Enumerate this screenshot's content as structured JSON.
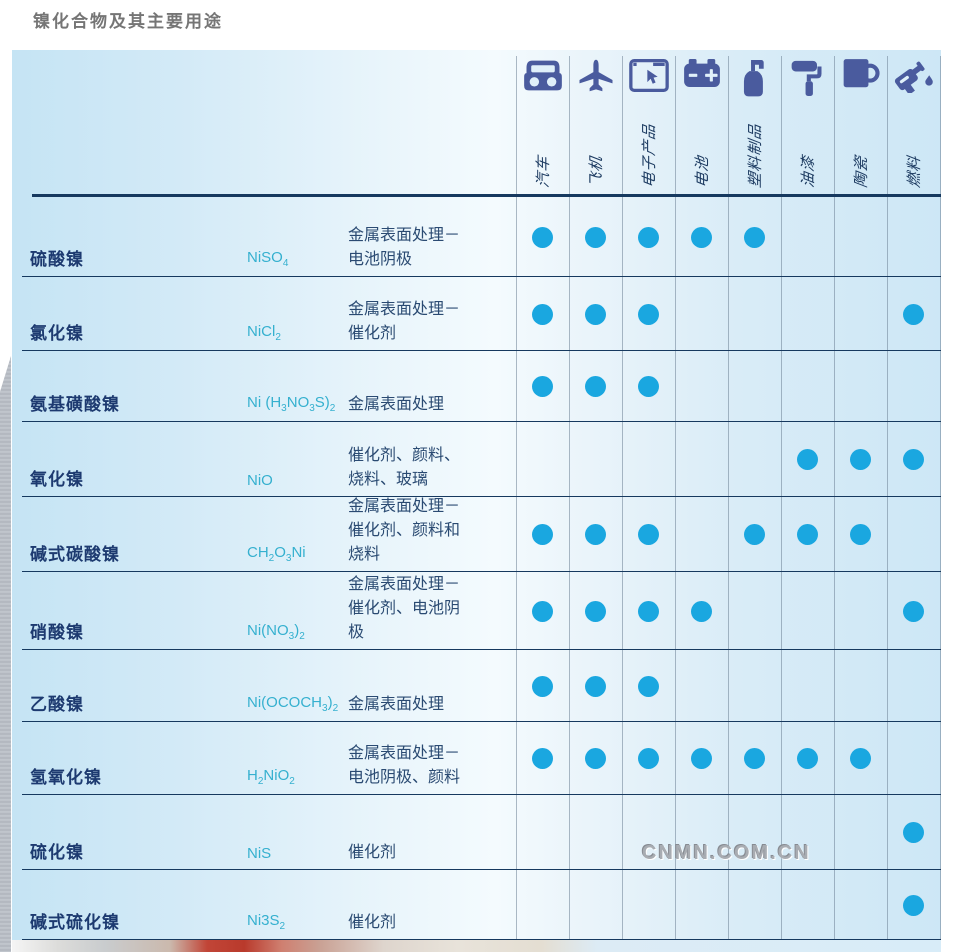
{
  "page_title": "镍化合物及其主要用途",
  "watermark": "CNMN.COM.CN",
  "colors": {
    "icon_blue": "#4a5b9e",
    "dot_blue": "#1aa7e0",
    "rule_dark": "#16395f",
    "grid_gray": "#90a0ae",
    "name_navy": "#1d3a70",
    "formula_cyan": "#35b0cf",
    "title_gray": "#757575"
  },
  "table": {
    "columns": [
      {
        "label": "汽车",
        "icon": "car-icon"
      },
      {
        "label": "飞机",
        "icon": "plane-icon"
      },
      {
        "label": "电子产品",
        "icon": "electronics-icon"
      },
      {
        "label": "电池",
        "icon": "battery-icon"
      },
      {
        "label": "塑料制品",
        "icon": "plastic-bottle-icon"
      },
      {
        "label": "油漆",
        "icon": "paint-roller-icon"
      },
      {
        "label": "陶瓷",
        "icon": "mug-icon"
      },
      {
        "label": "燃料",
        "icon": "fuel-nozzle-icon"
      }
    ],
    "rows": [
      {
        "name": "硫酸镍",
        "formula": "NiSO_4",
        "use": "金属表面处理－电池阴极",
        "dots": [
          1,
          1,
          1,
          1,
          1,
          0,
          0,
          0
        ]
      },
      {
        "name": "氯化镍",
        "formula": "NiCl_2",
        "use": "金属表面处理－催化剂",
        "dots": [
          1,
          1,
          1,
          0,
          0,
          0,
          0,
          1
        ]
      },
      {
        "name": "氨基磺酸镍",
        "formula": "Ni (H_3NO_3S)_2",
        "use": "金属表面处理",
        "dots": [
          1,
          1,
          1,
          0,
          0,
          0,
          0,
          0
        ]
      },
      {
        "name": "氧化镍",
        "formula": "NiO",
        "use": "催化剂、颜料、烧料、玻璃",
        "dots": [
          0,
          0,
          0,
          0,
          0,
          1,
          1,
          1
        ]
      },
      {
        "name": "碱式碳酸镍",
        "formula": "CH_2O_3Ni",
        "use": "金属表面处理－催化剂、颜料和烧料",
        "dots": [
          1,
          1,
          1,
          0,
          1,
          1,
          1,
          0
        ]
      },
      {
        "name": "硝酸镍",
        "formula": "Ni(NO_3)_2",
        "use": "金属表面处理－催化剂、电池阴极",
        "dots": [
          1,
          1,
          1,
          1,
          0,
          0,
          0,
          1
        ]
      },
      {
        "name": "乙酸镍",
        "formula": "Ni(OCOCH_3)_2",
        "use": "金属表面处理",
        "dots": [
          1,
          1,
          1,
          0,
          0,
          0,
          0,
          0
        ]
      },
      {
        "name": "氢氧化镍",
        "formula": "H_2NiO_2",
        "use": "金属表面处理－电池阴极、颜料",
        "dots": [
          1,
          1,
          1,
          1,
          1,
          1,
          1,
          0
        ]
      },
      {
        "name": "硫化镍",
        "formula": "NiS",
        "use": "催化剂",
        "dots": [
          0,
          0,
          0,
          0,
          0,
          0,
          0,
          1
        ]
      },
      {
        "name": "碱式硫化镍",
        "formula": "Ni3S_2",
        "use": "催化剂",
        "dots": [
          0,
          0,
          0,
          0,
          0,
          0,
          0,
          1
        ]
      }
    ]
  }
}
